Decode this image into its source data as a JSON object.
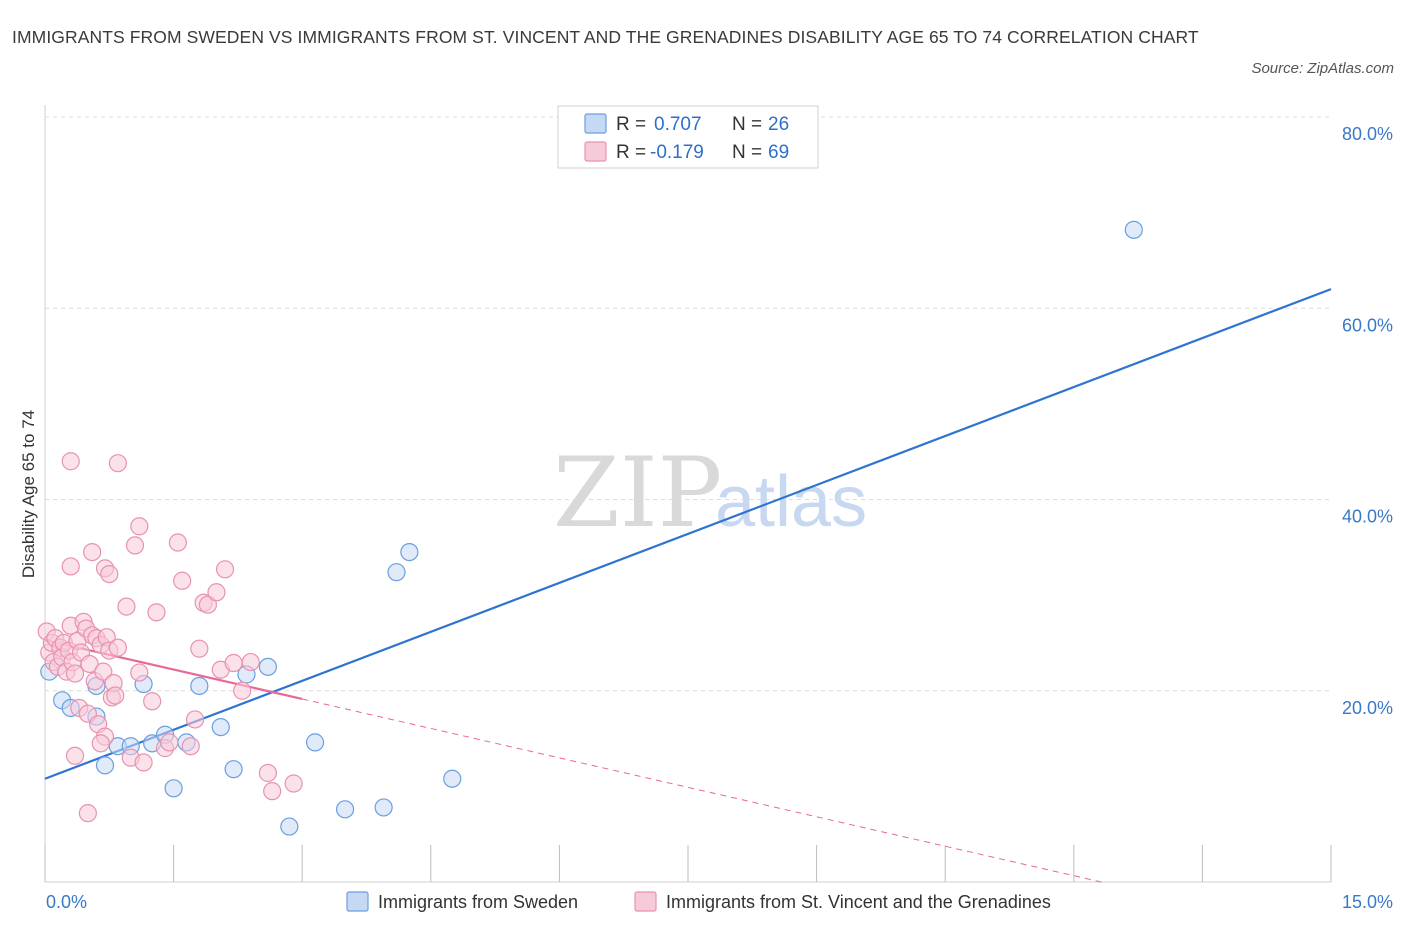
{
  "title": "IMMIGRANTS FROM SWEDEN VS IMMIGRANTS FROM ST. VINCENT AND THE GRENADINES DISABILITY AGE 65 TO 74 CORRELATION CHART",
  "source": "Source: ZipAtlas.com",
  "watermark": {
    "zip": "ZIP",
    "atlas": "atlas"
  },
  "colors": {
    "blue": "#6a9fe0",
    "blue_fill": "#c6d9f4",
    "blue_line": "#2f74d0",
    "pink": "#e892b0",
    "pink_fill": "#f7cad9",
    "pink_line": "#e8689a",
    "grid": "#dcdcdc",
    "tick_text": "#3a78c9"
  },
  "legend": {
    "rows": [
      {
        "r_label": "R =",
        "r_value": "0.707",
        "n_label": "N =",
        "n_value": "26"
      },
      {
        "r_label": "R =",
        "r_value": "-0.179",
        "n_label": "N =",
        "n_value": "69"
      }
    ]
  },
  "chart_data": {
    "type": "scatter",
    "title": "IMMIGRANTS FROM SWEDEN VS IMMIGRANTS FROM ST. VINCENT AND THE GRENADINES DISABILITY AGE 65 TO 74 CORRELATION CHART",
    "xlabel": "",
    "ylabel": "Disability Age 65 to 74",
    "xlim": [
      0,
      15
    ],
    "ylim": [
      0,
      80
    ],
    "x_tick_labels": [
      "0.0%",
      "15.0%"
    ],
    "y_ticks": [
      20,
      40,
      60,
      80
    ],
    "y_tick_labels": [
      "20.0%",
      "40.0%",
      "60.0%",
      "80.0%"
    ],
    "grid": true,
    "legend_position": "top-center",
    "series": [
      {
        "name": "Immigrants from Sweden",
        "color": "blue",
        "R": 0.707,
        "N": 26,
        "trend": {
          "x0": 0.0,
          "y0": 10.8,
          "x1": 15.0,
          "y1": 62.0,
          "solid_until": 15.0
        },
        "points": [
          [
            0.05,
            22.0
          ],
          [
            0.2,
            19.0
          ],
          [
            0.3,
            18.2
          ],
          [
            0.6,
            20.5
          ],
          [
            0.6,
            17.3
          ],
          [
            0.7,
            12.2
          ],
          [
            0.85,
            14.2
          ],
          [
            1.0,
            14.2
          ],
          [
            1.15,
            20.7
          ],
          [
            1.25,
            14.5
          ],
          [
            1.4,
            15.4
          ],
          [
            1.5,
            9.8
          ],
          [
            1.65,
            14.6
          ],
          [
            1.8,
            20.5
          ],
          [
            2.05,
            16.2
          ],
          [
            2.2,
            11.8
          ],
          [
            2.35,
            21.7
          ],
          [
            2.6,
            22.5
          ],
          [
            2.85,
            5.8
          ],
          [
            3.15,
            14.6
          ],
          [
            3.5,
            7.6
          ],
          [
            3.95,
            7.8
          ],
          [
            4.1,
            32.4
          ],
          [
            4.25,
            34.5
          ],
          [
            4.75,
            10.8
          ],
          [
            12.7,
            68.2
          ]
        ]
      },
      {
        "name": "Immigrants from St. Vincent and the Grenadines",
        "color": "pink",
        "R": -0.179,
        "N": 69,
        "trend": {
          "x0": 0.0,
          "y0": 25.3,
          "x1": 15.0,
          "y1": -5.5,
          "solid_until": 3.0
        },
        "points": [
          [
            0.02,
            26.2
          ],
          [
            0.05,
            24.0
          ],
          [
            0.08,
            25.0
          ],
          [
            0.1,
            23.0
          ],
          [
            0.12,
            25.5
          ],
          [
            0.15,
            22.5
          ],
          [
            0.18,
            24.5
          ],
          [
            0.2,
            23.5
          ],
          [
            0.22,
            25.0
          ],
          [
            0.25,
            22.0
          ],
          [
            0.28,
            24.2
          ],
          [
            0.3,
            26.8
          ],
          [
            0.32,
            23.0
          ],
          [
            0.35,
            21.8
          ],
          [
            0.38,
            25.2
          ],
          [
            0.4,
            18.2
          ],
          [
            0.42,
            24.0
          ],
          [
            0.45,
            27.2
          ],
          [
            0.48,
            26.5
          ],
          [
            0.5,
            17.6
          ],
          [
            0.52,
            22.8
          ],
          [
            0.55,
            25.8
          ],
          [
            0.58,
            21.0
          ],
          [
            0.6,
            25.5
          ],
          [
            0.62,
            16.5
          ],
          [
            0.65,
            24.8
          ],
          [
            0.68,
            22.0
          ],
          [
            0.7,
            15.2
          ],
          [
            0.72,
            25.6
          ],
          [
            0.75,
            24.2
          ],
          [
            0.78,
            19.3
          ],
          [
            0.8,
            20.8
          ],
          [
            0.82,
            19.5
          ],
          [
            0.85,
            24.5
          ],
          [
            0.3,
            33.0
          ],
          [
            0.35,
            13.2
          ],
          [
            0.3,
            44.0
          ],
          [
            0.55,
            34.5
          ],
          [
            0.65,
            14.5
          ],
          [
            0.7,
            32.8
          ],
          [
            0.75,
            32.2
          ],
          [
            0.85,
            43.8
          ],
          [
            0.95,
            28.8
          ],
          [
            1.0,
            13.0
          ],
          [
            1.05,
            35.2
          ],
          [
            1.1,
            37.2
          ],
          [
            1.1,
            21.9
          ],
          [
            1.15,
            12.5
          ],
          [
            1.25,
            18.9
          ],
          [
            1.3,
            28.2
          ],
          [
            1.4,
            14.0
          ],
          [
            1.55,
            35.5
          ],
          [
            1.6,
            31.5
          ],
          [
            1.7,
            14.2
          ],
          [
            1.75,
            17.0
          ],
          [
            1.8,
            24.4
          ],
          [
            1.85,
            29.2
          ],
          [
            1.9,
            29.0
          ],
          [
            2.0,
            30.3
          ],
          [
            2.05,
            22.2
          ],
          [
            2.1,
            32.7
          ],
          [
            2.2,
            22.9
          ],
          [
            2.3,
            20.0
          ],
          [
            2.4,
            23.0
          ],
          [
            2.6,
            11.4
          ],
          [
            2.65,
            9.5
          ],
          [
            2.9,
            10.3
          ],
          [
            0.5,
            7.2
          ],
          [
            1.45,
            14.6
          ]
        ]
      }
    ]
  }
}
